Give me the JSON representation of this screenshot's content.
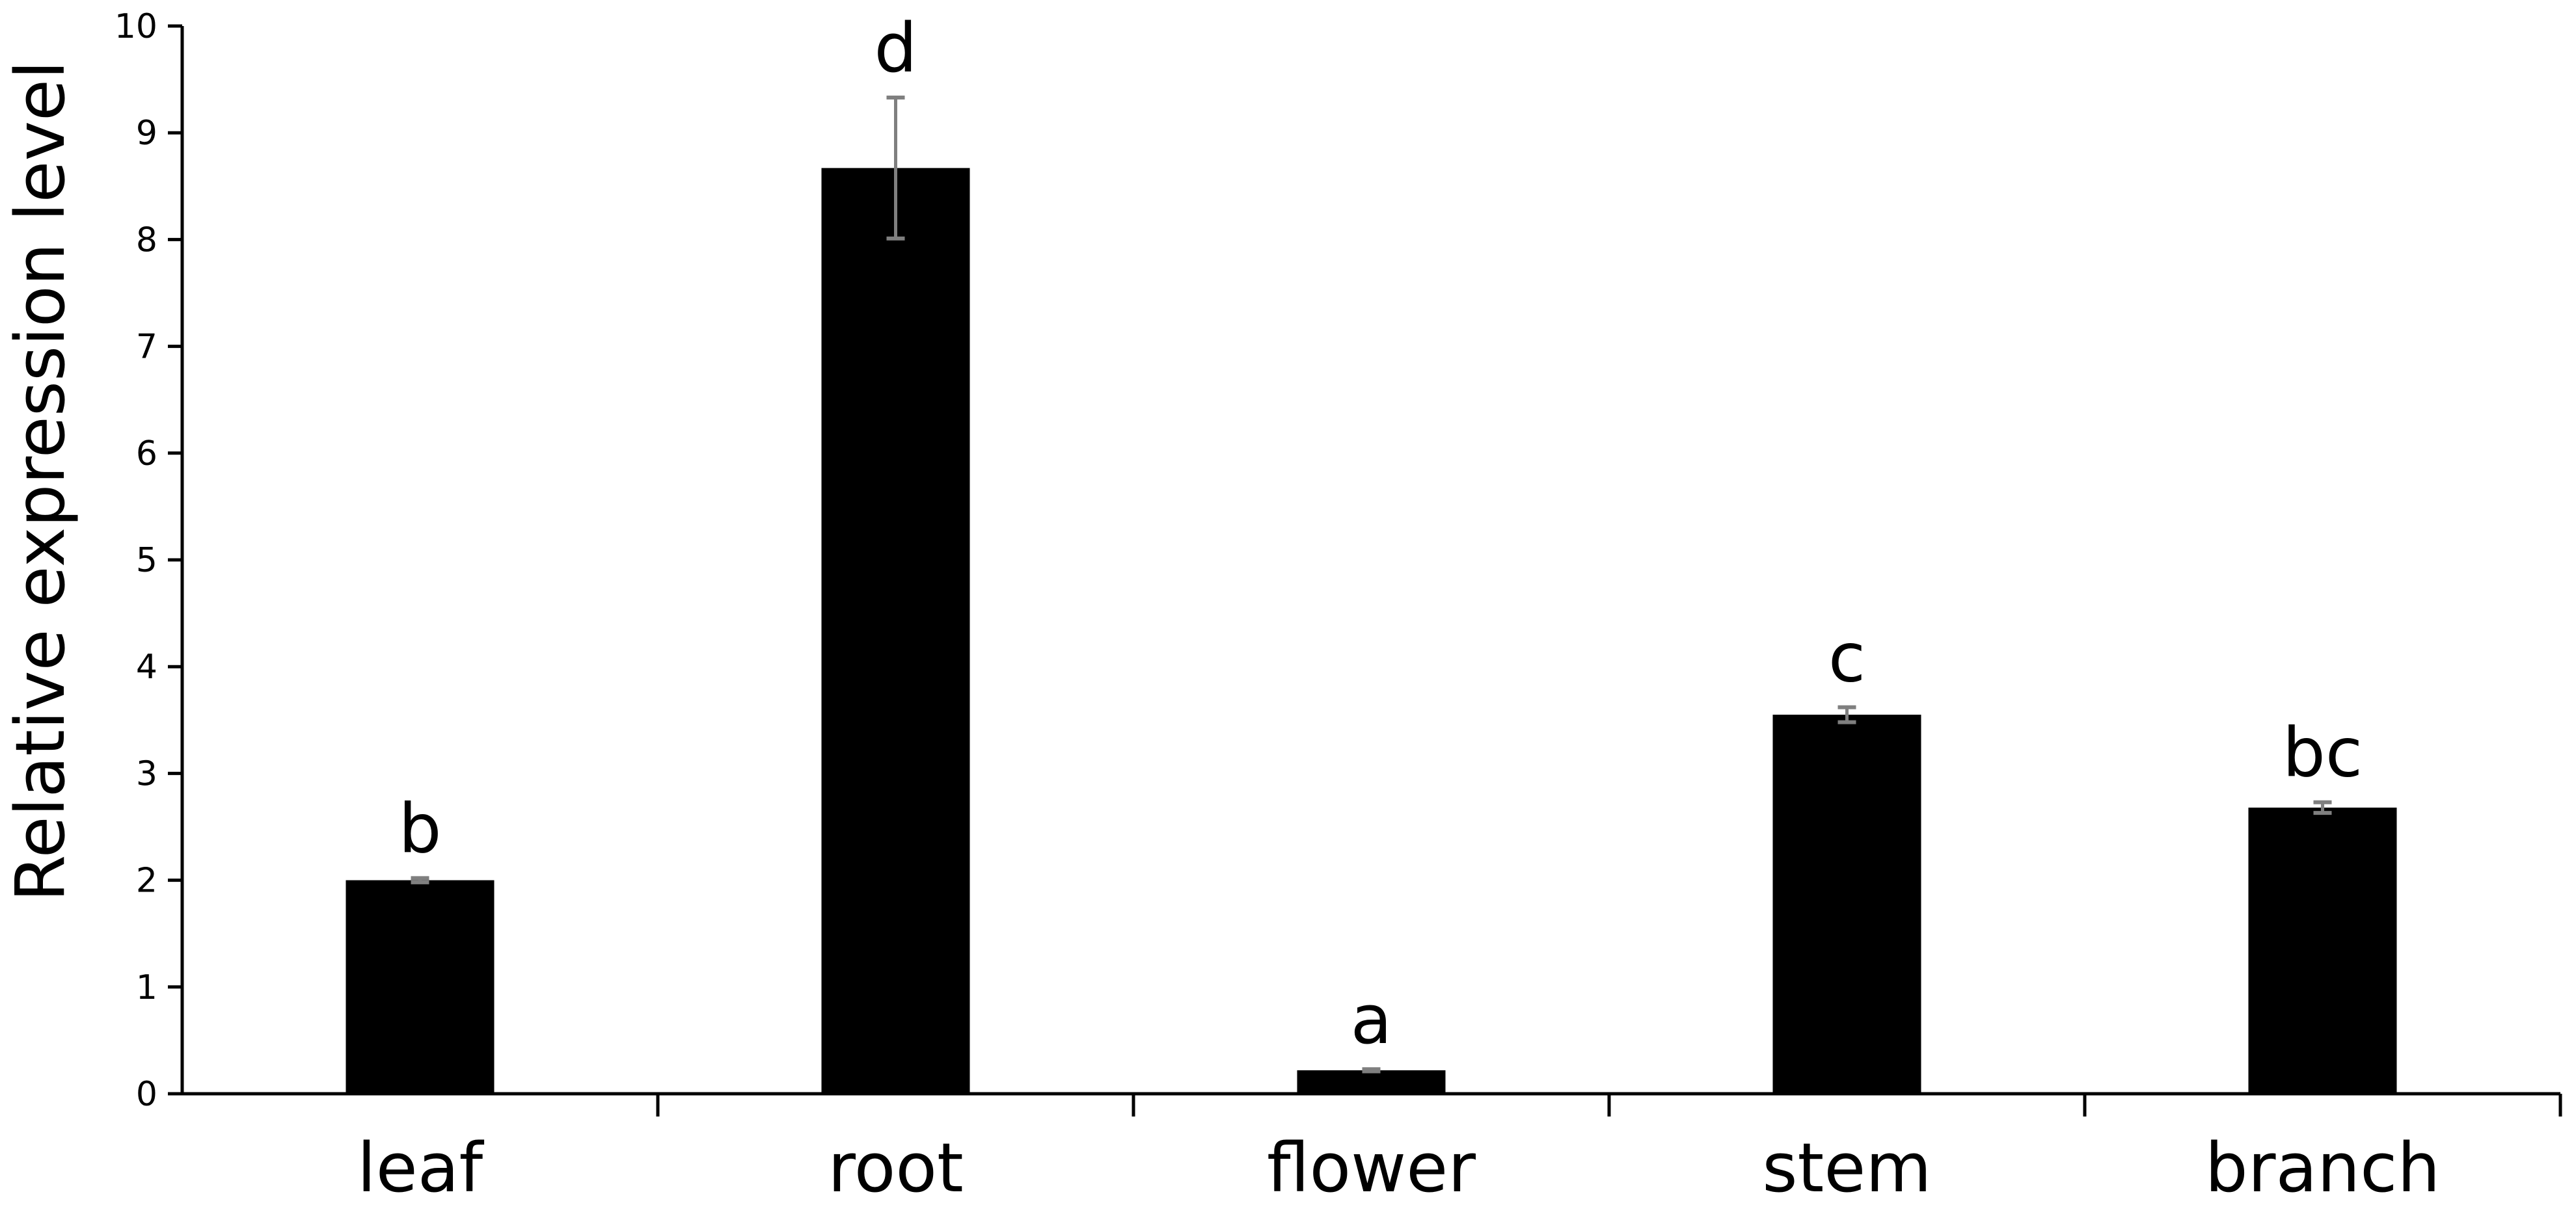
{
  "chart_data": {
    "type": "bar",
    "title": "",
    "xlabel": "",
    "ylabel": "Relative expression level",
    "ylim": [
      0,
      10
    ],
    "yticks": [
      0,
      1,
      2,
      3,
      4,
      5,
      6,
      7,
      8,
      9,
      10
    ],
    "grid": false,
    "categories": [
      "leaf",
      "root",
      "flower",
      "stem",
      "branch"
    ],
    "values": [
      2.0,
      8.67,
      0.22,
      3.55,
      2.68
    ],
    "errors": [
      0.02,
      0.66,
      0.01,
      0.07,
      0.05
    ],
    "significance": [
      "b",
      "d",
      "a",
      "c",
      "bc"
    ],
    "bar_color": "#000000",
    "error_color": "#7f7f7f"
  }
}
